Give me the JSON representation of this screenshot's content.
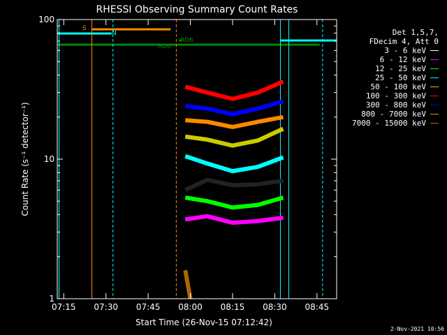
{
  "chart_data": {
    "type": "line",
    "title": "RHESSI Observing Summary Count Rates",
    "xlabel": "Start Time (26-Nov-15 07:12:42)",
    "ylabel": "Count Rate (s⁻¹ detector⁻¹)",
    "yscale": "log",
    "ylim": [
      1,
      100
    ],
    "y_ticks": [
      "1",
      "10",
      "100"
    ],
    "xlim": [
      "07:12:42",
      "08:52:00"
    ],
    "x_ticks": [
      "07:15",
      "07:30",
      "07:45",
      "08:00",
      "08:15",
      "08:30",
      "08:45"
    ],
    "legend_header": [
      "Det 1,5,7,",
      "FDecim 4, Att 0"
    ],
    "series": [
      {
        "name": "3 - 6 keV",
        "color": "#000000",
        "values": [
          [
            7.97,
            6.0
          ],
          [
            8.1,
            7.1
          ],
          [
            8.25,
            6.5
          ],
          [
            8.4,
            6.6
          ],
          [
            8.55,
            7.0
          ]
        ]
      },
      {
        "name": "6 - 12 keV",
        "color": "#ff00ff",
        "values": [
          [
            7.97,
            3.7
          ],
          [
            8.1,
            3.9
          ],
          [
            8.25,
            3.5
          ],
          [
            8.4,
            3.6
          ],
          [
            8.55,
            3.8
          ]
        ]
      },
      {
        "name": "12 - 25 keV",
        "color": "#00ff00",
        "values": [
          [
            7.97,
            5.3
          ],
          [
            8.1,
            5.0
          ],
          [
            8.25,
            4.5
          ],
          [
            8.4,
            4.7
          ],
          [
            8.55,
            5.3
          ]
        ]
      },
      {
        "name": "25 - 50 keV",
        "color": "#00ffff",
        "values": [
          [
            7.97,
            10.5
          ],
          [
            8.1,
            9.3
          ],
          [
            8.25,
            8.2
          ],
          [
            8.4,
            8.8
          ],
          [
            8.55,
            10.3
          ]
        ]
      },
      {
        "name": "50 - 100 keV",
        "color": "#cccc00",
        "values": [
          [
            7.97,
            14.5
          ],
          [
            8.1,
            13.8
          ],
          [
            8.25,
            12.5
          ],
          [
            8.4,
            13.6
          ],
          [
            8.55,
            16.5
          ]
        ]
      },
      {
        "name": "100 - 300 keV",
        "color": "#ff0000",
        "values": [
          [
            7.97,
            33
          ],
          [
            8.1,
            30
          ],
          [
            8.25,
            27
          ],
          [
            8.4,
            30
          ],
          [
            8.55,
            36
          ]
        ]
      },
      {
        "name": "300 - 800 keV",
        "color": "#0000ff",
        "values": [
          [
            7.97,
            24
          ],
          [
            8.1,
            23
          ],
          [
            8.25,
            21
          ],
          [
            8.4,
            23
          ],
          [
            8.55,
            26
          ]
        ]
      },
      {
        "name": "800 - 7000 keV",
        "color": "#ff8800",
        "values": [
          [
            7.97,
            19
          ],
          [
            8.1,
            18.5
          ],
          [
            8.25,
            17
          ],
          [
            8.4,
            18.5
          ],
          [
            8.55,
            20
          ]
        ]
      },
      {
        "name": "7000 - 15000 keV",
        "color": "#aa6600",
        "values": [
          [
            7.97,
            1.6
          ],
          [
            8.0,
            1.0
          ]
        ]
      }
    ],
    "flags": [
      {
        "label": "S",
        "color": "#ff8800",
        "start": "07:25",
        "end": "07:53"
      },
      {
        "label": "N",
        "color": "#00ffff",
        "start": "07:12:42",
        "end": "07:32"
      },
      {
        "label": "N",
        "color": "#00ffff",
        "start": "08:32",
        "end": "08:52"
      },
      {
        "label": "RD6",
        "color": "#008800",
        "start": "07:12:42",
        "end": "08:38"
      },
      {
        "label": "RD6",
        "color": "#008800",
        "start": "07:56",
        "end": "07:57"
      },
      {
        "label": "",
        "color": "#008800",
        "start": "08:38",
        "end": "08:46"
      }
    ],
    "flag_texts": [
      {
        "label": "S",
        "color": "#ff8800"
      },
      {
        "label": "N",
        "color": "#00ffff"
      },
      {
        "label": "RD6",
        "color": "#008800"
      },
      {
        "label": "RD6",
        "color": "#008800"
      }
    ]
  },
  "footer_stamp": "2-Nov-2021 10:56"
}
